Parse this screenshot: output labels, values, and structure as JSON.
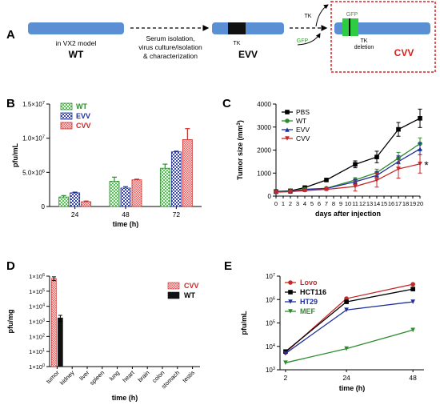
{
  "panel_labels": {
    "a": "A",
    "b": "B",
    "c": "C",
    "d": "D",
    "e": "E"
  },
  "colors": {
    "wt": "#2e8b2e",
    "evv": "#1f2f9c",
    "cvv": "#c62828",
    "wt_fill": "#7fd07f",
    "evv_fill": "#9aa0dc",
    "cvv_fill": "#f08080",
    "bar": "#5b8fd4",
    "tk": "#111111",
    "gfp": "#2ecc40",
    "dash_box": "#d62020",
    "pbs": "#000000",
    "lovo": "#c62828",
    "hct116": "#000000",
    "ht29": "#1f2f9c",
    "mef": "#2e8b2e"
  },
  "diagram": {
    "wt_sub": "in VX2 model",
    "wt_label": "WT",
    "step1_lines": [
      "Serum isolation,",
      "virus culture/isolation",
      "& characterization"
    ],
    "tk_label": "TK",
    "evv_label": "EVV",
    "tk_top": "TK",
    "gfp_left": "GFP",
    "gfp_box": "GFP",
    "tk_deletion": [
      "TK",
      "deletion"
    ],
    "cvv_label": "CVV"
  },
  "chart_data": [
    {
      "panel": "B",
      "type": "bar",
      "categories": [
        "24",
        "48",
        "72"
      ],
      "series": [
        {
          "name": "WT",
          "values": [
            1400000.0,
            3700000.0,
            5600000.0
          ],
          "errors": [
            200000.0,
            600000.0,
            600000.0
          ]
        },
        {
          "name": "EVV",
          "values": [
            2000000.0,
            2700000.0,
            8000000.0
          ],
          "errors": [
            100000.0,
            200000.0,
            100000.0
          ]
        },
        {
          "name": "CVV",
          "values": [
            700000.0,
            3900000.0,
            9800000.0
          ],
          "errors": [
            100000.0,
            100000.0,
            1600000.0
          ]
        }
      ],
      "xlabel": "time (h)",
      "ylabel": "pfu/mL",
      "ylim": [
        0,
        15000000.0
      ],
      "yticks": [
        {
          "value": 0,
          "base": "0",
          "exp": ""
        },
        {
          "value": 5000000,
          "base": "5.0×10",
          "exp": "6"
        },
        {
          "value": 10000000,
          "base": "1.0×10",
          "exp": "7"
        },
        {
          "value": 15000000,
          "base": "1.5×10",
          "exp": "7"
        }
      ],
      "legend": "top-left"
    },
    {
      "panel": "C",
      "type": "line",
      "x": [
        0,
        2,
        4,
        7,
        11,
        14,
        17,
        20
      ],
      "series": [
        {
          "name": "PBS",
          "values": [
            200,
            230,
            370,
            700,
            1380,
            1700,
            2900,
            3380
          ],
          "errors": [
            40,
            40,
            60,
            60,
            150,
            250,
            300,
            400
          ]
        },
        {
          "name": "WT",
          "values": [
            180,
            210,
            300,
            340,
            700,
            1020,
            1650,
            2280
          ],
          "errors": [
            30,
            30,
            40,
            40,
            100,
            150,
            250,
            250
          ]
        },
        {
          "name": "EVV",
          "values": [
            190,
            200,
            280,
            330,
            620,
            900,
            1500,
            2050
          ],
          "errors": [
            30,
            30,
            40,
            40,
            100,
            150,
            250,
            250
          ]
        },
        {
          "name": "CVV",
          "values": [
            170,
            190,
            240,
            290,
            420,
            690,
            1180,
            1400
          ],
          "errors": [
            30,
            30,
            40,
            40,
            200,
            300,
            400,
            400
          ]
        }
      ],
      "xticks": [
        "0",
        "1",
        "2",
        "3",
        "4",
        "5",
        "6",
        "7",
        "8",
        "9",
        "10",
        "11",
        "12",
        "13",
        "14",
        "15",
        "16",
        "17",
        "18",
        "19",
        "20"
      ],
      "xlabel": "days after injection",
      "ylabel": "Tumor size (mm",
      "ylabel_sup": "3",
      "ylabel_end": ")",
      "ylim": [
        0,
        4000
      ],
      "yticks": [
        "0",
        "1000",
        "2000",
        "3000",
        "4000"
      ],
      "annotation": "*",
      "legend": "top-left"
    },
    {
      "panel": "D",
      "type": "bar",
      "log_scale": true,
      "categories": [
        "tumor",
        "kidney",
        "liver",
        "spleen",
        "lung",
        "heart",
        "brain",
        "colon",
        "stomach",
        "testis"
      ],
      "series": [
        {
          "name": "CVV",
          "values": [
            700000,
            null,
            null,
            null,
            null,
            null,
            null,
            null,
            null,
            null
          ],
          "error_low": 500000,
          "error_high": 900000
        },
        {
          "name": "WT",
          "values": [
            1700,
            null,
            null,
            null,
            null,
            null,
            null,
            null,
            null,
            null
          ],
          "error_low": 1000,
          "error_high": 2500
        }
      ],
      "xlabel": "time (h)",
      "ylabel": "pfu/mg",
      "ylim": [
        1,
        1000000
      ],
      "yticks": [
        {
          "exp_value": 0,
          "base": "1×10",
          "exp": "0"
        },
        {
          "exp_value": 1,
          "base": "1×10",
          "exp": "1"
        },
        {
          "exp_value": 2,
          "base": "1×10",
          "exp": "2"
        },
        {
          "exp_value": 3,
          "base": "1×10",
          "exp": "3"
        },
        {
          "exp_value": 4,
          "base": "1×10",
          "exp": "4"
        },
        {
          "exp_value": 5,
          "base": "1×10",
          "exp": "5"
        },
        {
          "exp_value": 6,
          "base": "1×10",
          "exp": "6"
        }
      ],
      "legend": "top-right"
    },
    {
      "panel": "E",
      "type": "line",
      "log_scale": true,
      "x": [
        2,
        24,
        48
      ],
      "xticks": [
        "2",
        "24",
        "48"
      ],
      "series": [
        {
          "name": "Lovo",
          "values": [
            5500,
            1100000,
            4500000
          ]
        },
        {
          "name": "HCT116",
          "values": [
            6000,
            800000,
            2800000
          ]
        },
        {
          "name": "HT29",
          "values": [
            5000,
            360000,
            800000
          ]
        },
        {
          "name": "MEF",
          "values": [
            2000,
            8000,
            50000
          ]
        }
      ],
      "xlabel": "time (h)",
      "ylabel": "pfu/mL",
      "ylim": [
        1000,
        10000000
      ],
      "yticks": [
        {
          "exp_value": 3,
          "base": "10",
          "exp": "3"
        },
        {
          "exp_value": 4,
          "base": "10",
          "exp": "4"
        },
        {
          "exp_value": 5,
          "base": "10",
          "exp": "5"
        },
        {
          "exp_value": 6,
          "base": "10",
          "exp": "6"
        },
        {
          "exp_value": 7,
          "base": "10",
          "exp": "7"
        }
      ],
      "legend": "top-left"
    }
  ]
}
